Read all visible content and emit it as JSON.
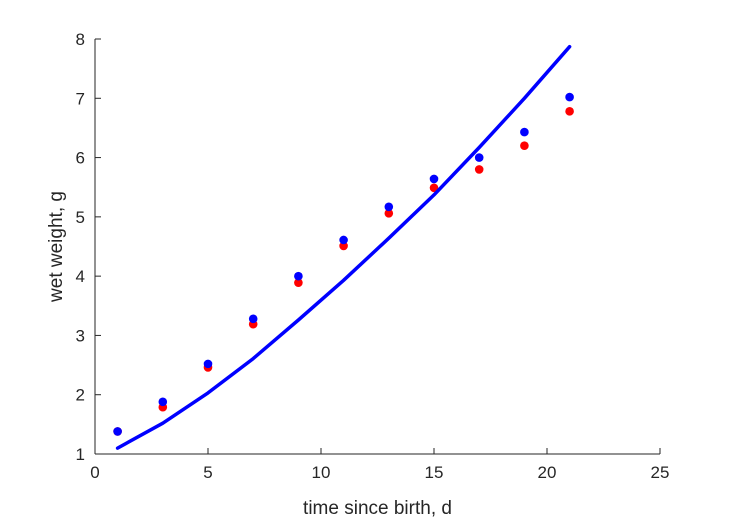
{
  "chart_data": {
    "type": "scatter",
    "xlabel": "time since birth, d",
    "ylabel": "wet weight, g",
    "xlim": [
      0,
      25
    ],
    "ylim": [
      1,
      8
    ],
    "xticks": [
      0,
      5,
      10,
      15,
      20,
      25
    ],
    "yticks": [
      1,
      2,
      3,
      4,
      5,
      6,
      7,
      8
    ],
    "xtick_labels": [
      "0",
      "5",
      "10",
      "15",
      "20",
      "25"
    ],
    "ytick_labels": [
      "1",
      "2",
      "3",
      "4",
      "5",
      "6",
      "7",
      "8"
    ],
    "grid": false,
    "series": [
      {
        "kind": "points",
        "color": "#ff0000",
        "x": [
          1,
          3,
          5,
          7,
          9,
          11,
          13,
          15,
          17,
          19,
          21
        ],
        "y": [
          1.38,
          1.79,
          2.46,
          3.19,
          3.89,
          4.51,
          5.06,
          5.49,
          5.8,
          6.2,
          6.78
        ]
      },
      {
        "kind": "points",
        "color": "#0000ff",
        "x": [
          1,
          3,
          5,
          7,
          9,
          11,
          13,
          15,
          17,
          19,
          21
        ],
        "y": [
          1.38,
          1.88,
          2.52,
          3.28,
          4.0,
          4.61,
          5.17,
          5.64,
          6.0,
          6.43,
          7.02
        ]
      },
      {
        "kind": "line",
        "color": "#0000ff",
        "x": [
          1,
          3,
          5,
          7,
          9,
          11,
          13,
          15,
          17,
          19,
          21
        ],
        "y": [
          1.1,
          1.52,
          2.03,
          2.61,
          3.26,
          3.93,
          4.64,
          5.37,
          6.17,
          7.0,
          7.87
        ]
      }
    ]
  }
}
